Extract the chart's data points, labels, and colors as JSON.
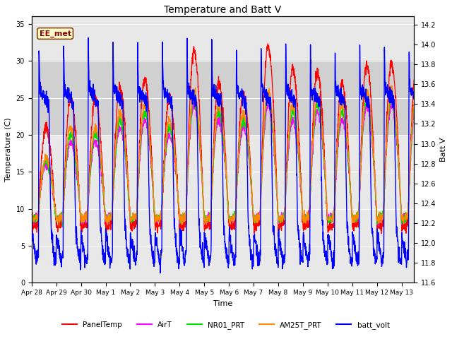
{
  "title": "Temperature and Batt V",
  "xlabel": "Time",
  "ylabel_left": "Temperature (C)",
  "ylabel_right": "Batt V",
  "annotation": "EE_met",
  "ylim_left": [
    0,
    36
  ],
  "ylim_right": [
    11.6,
    14.28
  ],
  "yticks_left": [
    0,
    5,
    10,
    15,
    20,
    25,
    30,
    35
  ],
  "yticks_right": [
    11.6,
    11.8,
    12.0,
    12.2,
    12.4,
    12.6,
    12.8,
    13.0,
    13.2,
    13.4,
    13.6,
    13.8,
    14.0,
    14.2
  ],
  "day_labels": [
    "Apr 28",
    "Apr 29",
    "Apr 30",
    "May 1",
    "May 2",
    "May 3",
    "May 4",
    "May 5",
    "May 6",
    "May 7",
    "May 8",
    "May 9",
    "May 10",
    "May 11",
    "May 12",
    "May 13"
  ],
  "line_colors": {
    "PanelTemp": "#ff0000",
    "AirT": "#ff00ff",
    "NR01_PRT": "#00dd00",
    "AM25T_PRT": "#ff8800",
    "batt_volt": "#0000ff"
  },
  "bg_color": "#ffffff",
  "plot_bg_color": "#e8e8e8",
  "grid_color": "#ffffff",
  "shaded_band": [
    20,
    30
  ],
  "shaded_band_color": "#d0d0d0"
}
